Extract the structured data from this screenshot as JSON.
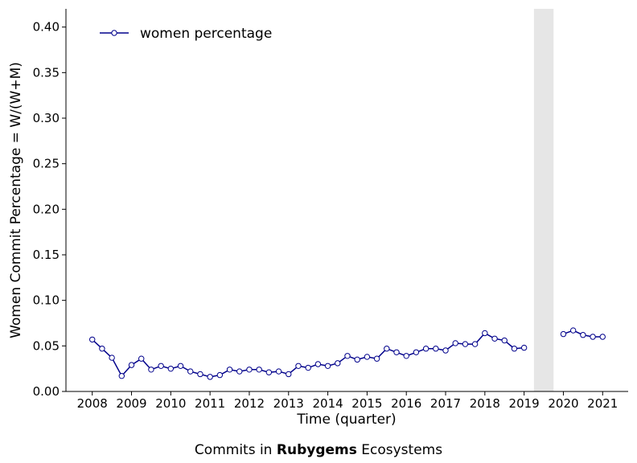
{
  "chart_data": {
    "type": "line",
    "xlabel": "Time (quarter)",
    "ylabel": "Women Commit Percentage = W/(W+M)",
    "xlim": [
      2007.33,
      2021.65
    ],
    "ylim": [
      0.0,
      0.42
    ],
    "x_ticks": [
      2008,
      2009,
      2010,
      2011,
      2012,
      2013,
      2014,
      2015,
      2016,
      2017,
      2018,
      2019,
      2020,
      2021
    ],
    "y_ticks": [
      0.0,
      0.05,
      0.1,
      0.15,
      0.2,
      0.25,
      0.3,
      0.35,
      0.4
    ],
    "grid": false,
    "legend_position": "top-left",
    "shaded_region": {
      "x_start": 2019.25,
      "x_end": 2019.75,
      "color": "#e6e6e6"
    },
    "series": [
      {
        "name": "women percentage",
        "color": "#00008b",
        "marker": "circle-open",
        "segments": [
          {
            "x": [
              2008.0,
              2008.25,
              2008.5,
              2008.75,
              2009.0,
              2009.25,
              2009.5,
              2009.75,
              2010.0,
              2010.25,
              2010.5,
              2010.75,
              2011.0,
              2011.25,
              2011.5,
              2011.75,
              2012.0,
              2012.25,
              2012.5,
              2012.75,
              2013.0,
              2013.25,
              2013.5,
              2013.75,
              2014.0,
              2014.25,
              2014.5,
              2014.75,
              2015.0,
              2015.25,
              2015.5,
              2015.75,
              2016.0,
              2016.25,
              2016.5,
              2016.75,
              2017.0,
              2017.25,
              2017.5,
              2017.75,
              2018.0,
              2018.25,
              2018.5,
              2018.75,
              2019.0
            ],
            "y": [
              0.057,
              0.047,
              0.037,
              0.017,
              0.029,
              0.036,
              0.024,
              0.028,
              0.025,
              0.028,
              0.022,
              0.019,
              0.016,
              0.018,
              0.024,
              0.022,
              0.024,
              0.024,
              0.021,
              0.022,
              0.019,
              0.028,
              0.026,
              0.03,
              0.028,
              0.031,
              0.039,
              0.035,
              0.038,
              0.036,
              0.047,
              0.043,
              0.039,
              0.043,
              0.047,
              0.047,
              0.045,
              0.053,
              0.052,
              0.052,
              0.064,
              0.058,
              0.056,
              0.047,
              0.048
            ]
          },
          {
            "x": [
              2020.0,
              2020.25,
              2020.5,
              2020.75,
              2021.0
            ],
            "y": [
              0.063,
              0.067,
              0.062,
              0.06,
              0.06
            ]
          }
        ]
      }
    ]
  },
  "caption": {
    "prefix": "Commits in ",
    "bold": "Rubygems",
    "suffix": " Ecosystems"
  }
}
